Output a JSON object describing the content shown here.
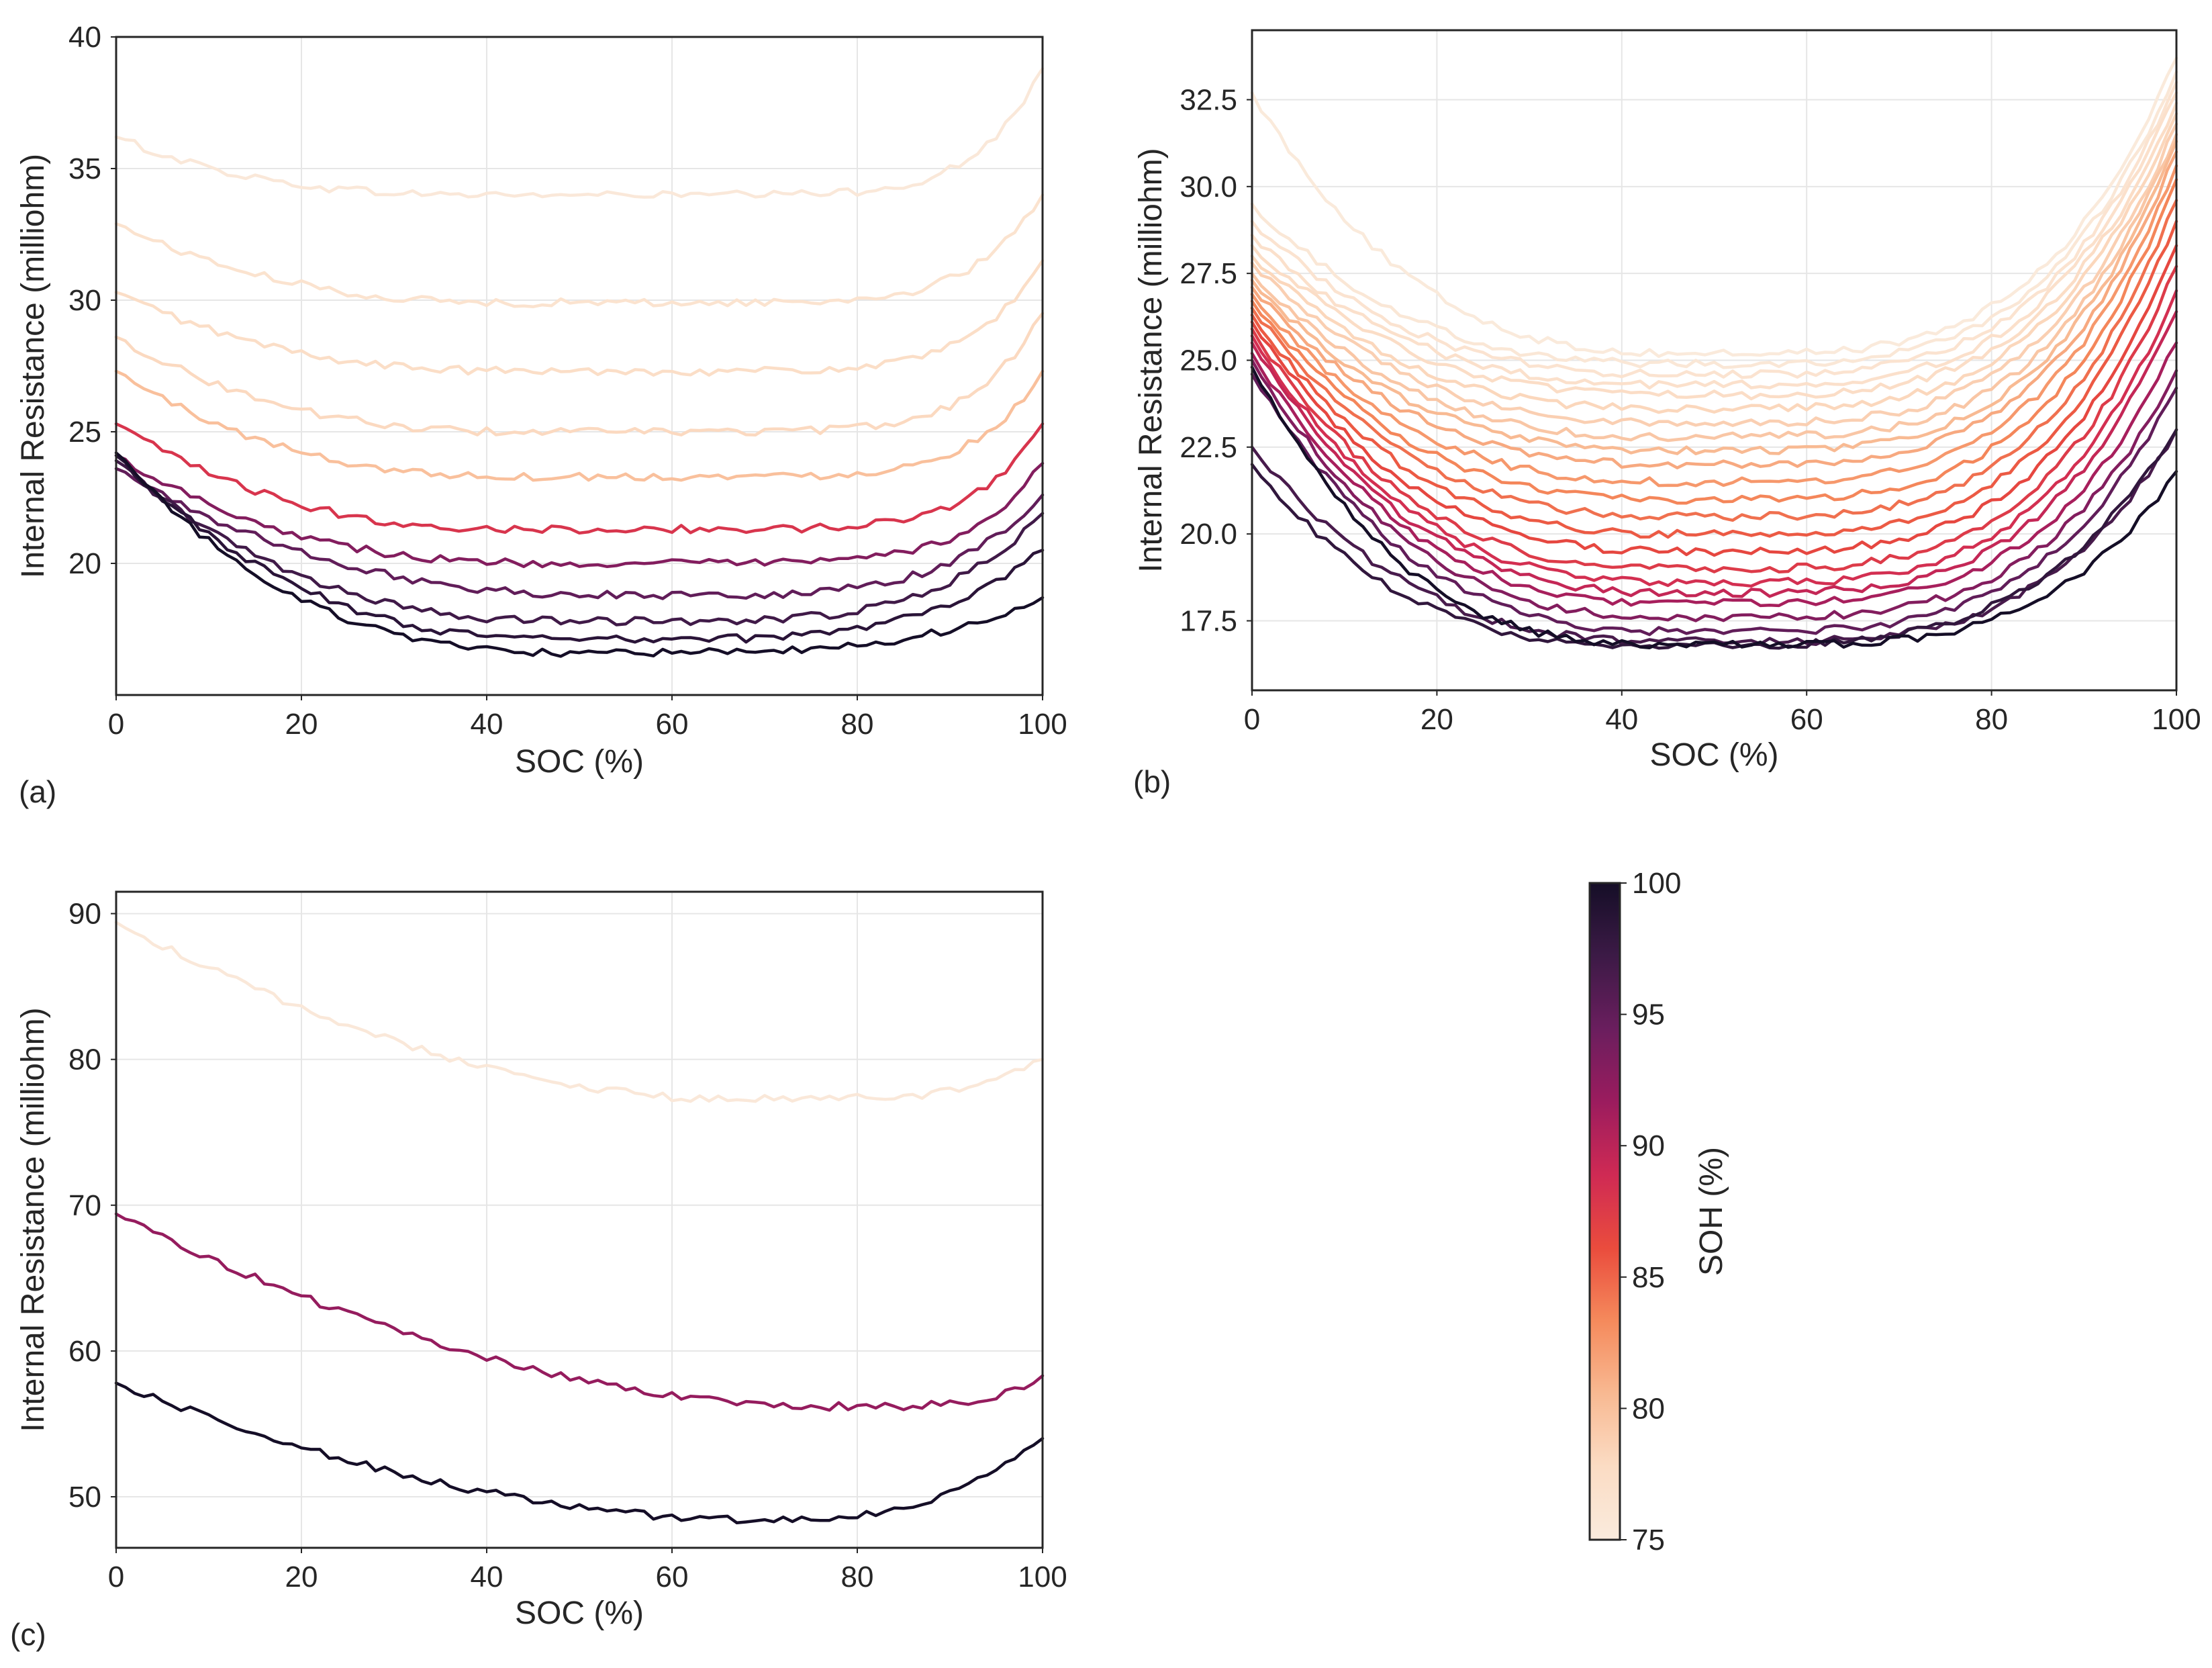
{
  "colors": {
    "colormap_stops": [
      "#150e27",
      "#3c1a46",
      "#6a1e5e",
      "#9b1c5e",
      "#cf2a54",
      "#ea4c3d",
      "#f58a5c",
      "#f8b992",
      "#fbdcc4",
      "#faebdd"
    ]
  },
  "colorbar": {
    "label": "SOH (%)",
    "min": 75,
    "max": 100,
    "ticks": [
      "100",
      "95",
      "90",
      "85",
      "80",
      "75"
    ],
    "tick_values": [
      100,
      95,
      90,
      85,
      80,
      75
    ]
  },
  "chart_data": [
    {
      "id": "a",
      "panel_label": "(a)",
      "type": "line",
      "xlabel": "SOC (%)",
      "ylabel": "Internal Resistance (milliohm)",
      "xlim": [
        0,
        100
      ],
      "ylim": [
        15,
        40
      ],
      "xticks": [
        "0",
        "20",
        "40",
        "60",
        "80",
        "100"
      ],
      "xtick_values": [
        0,
        20,
        40,
        60,
        80,
        100
      ],
      "yticks": [
        "20",
        "25",
        "30",
        "35",
        "40"
      ],
      "ytick_values": [
        20,
        25,
        30,
        35,
        40
      ],
      "grid": true,
      "series": [
        {
          "soh": 75.5,
          "start": 36.2,
          "min": 34.0,
          "end": 38.8,
          "minx": 45,
          "p": 3.0,
          "rf": 5
        },
        {
          "soh": 76.5,
          "start": 32.9,
          "min": 29.9,
          "end": 34.0,
          "minx": 45,
          "p": 2.5,
          "rf": 5
        },
        {
          "soh": 77.5,
          "start": 30.3,
          "min": 27.3,
          "end": 31.5,
          "minx": 45,
          "p": 2.5,
          "rf": 5
        },
        {
          "soh": 78.0,
          "start": 28.6,
          "min": 25.0,
          "end": 29.5,
          "minx": 45,
          "p": 2.5,
          "rf": 5
        },
        {
          "soh": 80.0,
          "start": 27.3,
          "min": 23.3,
          "end": 27.3,
          "minx": 45,
          "p": 2.5,
          "rf": 5
        },
        {
          "soh": 88.0,
          "start": 25.3,
          "min": 21.3,
          "end": 25.3,
          "minx": 45,
          "p": 2.5,
          "rf": 5
        },
        {
          "soh": 93.0,
          "start": 24.1,
          "min": 20.0,
          "end": 23.8,
          "minx": 48,
          "p": 2.5,
          "rf": 4
        },
        {
          "soh": 95.0,
          "start": 23.6,
          "min": 18.8,
          "end": 22.6,
          "minx": 55,
          "p": 2.4,
          "rf": 2
        },
        {
          "soh": 97.0,
          "start": 23.9,
          "min": 17.8,
          "end": 21.9,
          "minx": 50,
          "p": 2.5,
          "rf": 2
        },
        {
          "soh": 98.5,
          "start": 24.1,
          "min": 17.1,
          "end": 20.5,
          "minx": 50,
          "p": 2.5,
          "rf": 1.5
        },
        {
          "soh": 100.0,
          "start": 24.2,
          "min": 16.6,
          "end": 18.7,
          "minx": 50,
          "p": 2.6,
          "rf": 1.2
        }
      ]
    },
    {
      "id": "b",
      "panel_label": "(b)",
      "type": "line",
      "xlabel": "SOC (%)",
      "ylabel": "Internal Resistance (milliohm)",
      "xlim": [
        0,
        100
      ],
      "ylim": [
        15.5,
        34.5
      ],
      "xticks": [
        "0",
        "20",
        "40",
        "60",
        "80",
        "100"
      ],
      "xtick_values": [
        0,
        20,
        40,
        60,
        80,
        100
      ],
      "yticks": [
        "17.5",
        "20.0",
        "22.5",
        "25.0",
        "27.5",
        "30.0",
        "32.5"
      ],
      "ytick_values": [
        17.5,
        20.0,
        22.5,
        25.0,
        27.5,
        30.0,
        32.5
      ],
      "grid": true,
      "series": [
        {
          "soh": 75.2,
          "start": 32.7,
          "min": 25.2,
          "end": 33.7,
          "minx": 48,
          "p": 2.8,
          "rf": 1
        },
        {
          "soh": 75.8,
          "start": 29.5,
          "min": 24.9,
          "end": 33.3,
          "minx": 48,
          "p": 2.8,
          "rf": 1
        },
        {
          "soh": 76.4,
          "start": 29.0,
          "min": 24.6,
          "end": 33.0,
          "minx": 48,
          "p": 2.8,
          "rf": 1
        },
        {
          "soh": 77.0,
          "start": 28.6,
          "min": 24.3,
          "end": 32.7,
          "minx": 48,
          "p": 2.8,
          "rf": 1
        },
        {
          "soh": 77.6,
          "start": 28.3,
          "min": 24.0,
          "end": 32.4,
          "minx": 48,
          "p": 2.8,
          "rf": 1
        },
        {
          "soh": 78.2,
          "start": 28.0,
          "min": 23.6,
          "end": 32.1,
          "minx": 48,
          "p": 2.8,
          "rf": 1
        },
        {
          "soh": 78.8,
          "start": 27.8,
          "min": 23.2,
          "end": 31.8,
          "minx": 48,
          "p": 2.8,
          "rf": 1
        },
        {
          "soh": 79.5,
          "start": 27.5,
          "min": 22.8,
          "end": 31.5,
          "minx": 48,
          "p": 2.8,
          "rf": 1
        },
        {
          "soh": 80.5,
          "start": 27.3,
          "min": 22.4,
          "end": 31.3,
          "minx": 48,
          "p": 2.8,
          "rf": 1
        },
        {
          "soh": 81.5,
          "start": 27.1,
          "min": 22.0,
          "end": 31.0,
          "minx": 48,
          "p": 2.8,
          "rf": 1
        },
        {
          "soh": 82.5,
          "start": 26.9,
          "min": 21.5,
          "end": 30.6,
          "minx": 48,
          "p": 2.8,
          "rf": 1
        },
        {
          "soh": 83.5,
          "start": 26.7,
          "min": 21.0,
          "end": 30.2,
          "minx": 48,
          "p": 2.8,
          "rf": 1
        },
        {
          "soh": 84.5,
          "start": 26.5,
          "min": 20.5,
          "end": 29.6,
          "minx": 48,
          "p": 2.8,
          "rf": 1
        },
        {
          "soh": 85.5,
          "start": 26.3,
          "min": 20.0,
          "end": 29.0,
          "minx": 48,
          "p": 2.8,
          "rf": 1
        },
        {
          "soh": 86.5,
          "start": 26.1,
          "min": 19.5,
          "end": 28.3,
          "minx": 48,
          "p": 2.8,
          "rf": 1
        },
        {
          "soh": 87.5,
          "start": 25.9,
          "min": 19.0,
          "end": 27.7,
          "minx": 48,
          "p": 2.8,
          "rf": 1
        },
        {
          "soh": 88.5,
          "start": 25.7,
          "min": 18.6,
          "end": 27.0,
          "minx": 48,
          "p": 2.8,
          "rf": 1
        },
        {
          "soh": 89.5,
          "start": 25.5,
          "min": 18.3,
          "end": 26.4,
          "minx": 48,
          "p": 2.8,
          "rf": 1
        },
        {
          "soh": 91.0,
          "start": 25.2,
          "min": 18.0,
          "end": 25.5,
          "minx": 48,
          "p": 2.8,
          "rf": 1
        },
        {
          "soh": 93.0,
          "start": 25.0,
          "min": 17.6,
          "end": 24.7,
          "minx": 48,
          "p": 2.8,
          "rf": 1
        },
        {
          "soh": 95.0,
          "start": 24.6,
          "min": 17.2,
          "end": 24.2,
          "minx": 48,
          "p": 2.8,
          "rf": 1
        },
        {
          "soh": 96.5,
          "start": 22.5,
          "min": 16.9,
          "end": 23.0,
          "minx": 48,
          "p": 2.8,
          "rf": 1
        },
        {
          "soh": 98.0,
          "start": 22.0,
          "min": 16.8,
          "end": 23.0,
          "minx": 45,
          "p": 2.8,
          "rf": 1
        },
        {
          "soh": 100.0,
          "start": 24.8,
          "min": 16.8,
          "end": 21.8,
          "minx": 48,
          "p": 3.0,
          "rf": 1
        }
      ]
    },
    {
      "id": "c",
      "panel_label": "(c)",
      "type": "line",
      "xlabel": "SOC (%)",
      "ylabel": "Internal Resistance (milliohm)",
      "xlim": [
        0,
        100
      ],
      "ylim": [
        46.5,
        91.5
      ],
      "xticks": [
        "0",
        "20",
        "40",
        "60",
        "80",
        "100"
      ],
      "xtick_values": [
        0,
        20,
        40,
        60,
        80,
        100
      ],
      "yticks": [
        "50",
        "60",
        "70",
        "80",
        "90"
      ],
      "ytick_values": [
        50,
        60,
        70,
        80,
        90
      ],
      "grid": true,
      "series": [
        {
          "soh": 75.5,
          "start": 89.4,
          "min": 77.3,
          "end": 80.0,
          "minx": 65,
          "p": 1.8,
          "rf": 3
        },
        {
          "soh": 92.0,
          "start": 69.4,
          "min": 56.2,
          "end": 58.3,
          "minx": 75,
          "p": 1.8,
          "rf": 3
        },
        {
          "soh": 100.0,
          "start": 57.8,
          "min": 48.4,
          "end": 54.0,
          "minx": 68,
          "p": 1.8,
          "rf": 1.2
        }
      ]
    }
  ]
}
